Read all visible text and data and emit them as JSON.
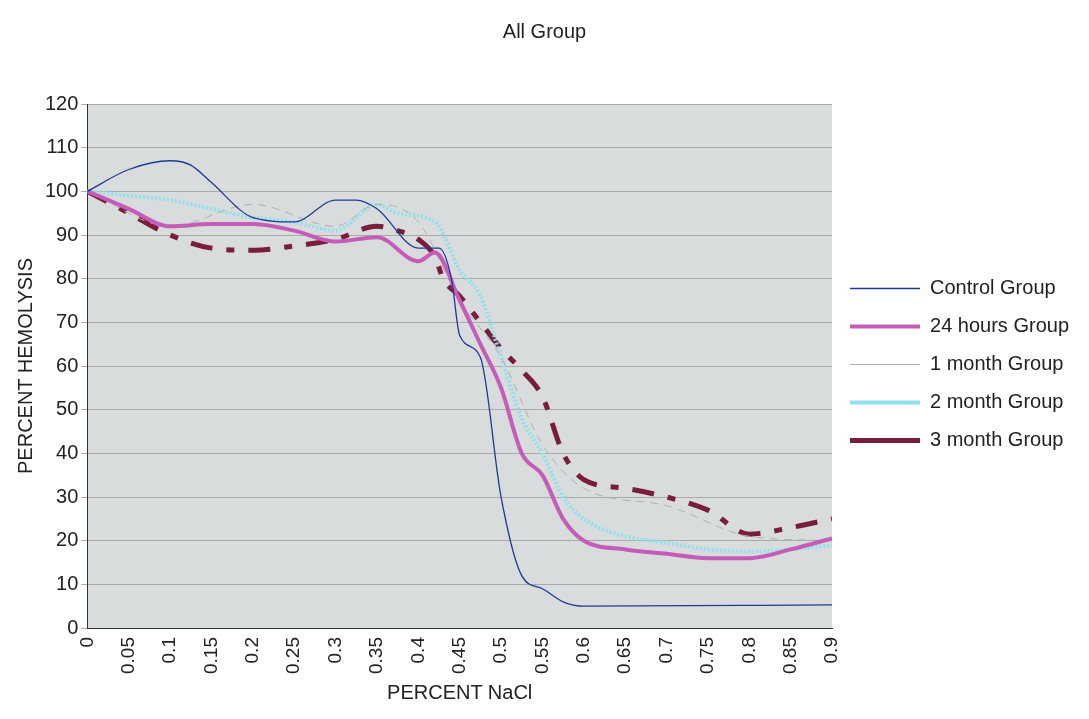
{
  "chart_data": {
    "type": "line",
    "title": "All Group",
    "xlabel": "PERCENT NaCl",
    "ylabel": "PERCENT HEMOLYSIS",
    "xlim": [
      0,
      0.9
    ],
    "xticks": [
      0,
      0.05,
      0.1,
      0.15,
      0.2,
      0.25,
      0.3,
      0.35,
      0.4,
      0.45,
      0.5,
      0.55,
      0.6,
      0.65,
      0.7,
      0.75,
      0.8,
      0.85,
      0.9
    ],
    "ylim": [
      0,
      120
    ],
    "yticks": [
      0,
      10,
      20,
      30,
      40,
      50,
      60,
      70,
      80,
      90,
      100,
      110,
      120
    ],
    "grid": "y",
    "legend": "right",
    "marker": "none",
    "series": [
      {
        "name": "Control Group",
        "color": "#1f3a93",
        "line_style": "solid",
        "x": [
          0,
          0.05,
          0.1,
          0.125,
          0.15,
          0.2,
          0.25,
          0.3,
          0.325,
          0.35,
          0.4,
          0.425,
          0.44,
          0.45,
          0.475,
          0.5,
          0.525,
          0.55,
          0.575,
          0.6,
          0.9
        ],
        "values": [
          100,
          105,
          107,
          106,
          102,
          94,
          93,
          98,
          98,
          96,
          87,
          87,
          80,
          67,
          62,
          30,
          12,
          9,
          6,
          5,
          5.3
        ]
      },
      {
        "name": "24 hours Group",
        "color": "#c45cb8",
        "line_style": "solid",
        "x": [
          0,
          0.05,
          0.1,
          0.15,
          0.2,
          0.25,
          0.3,
          0.35,
          0.4,
          0.42,
          0.45,
          0.475,
          0.5,
          0.525,
          0.55,
          0.575,
          0.6,
          0.65,
          0.7,
          0.75,
          0.8,
          0.85,
          0.9
        ],
        "values": [
          100,
          96,
          92,
          92.5,
          92.5,
          91,
          88.5,
          89.5,
          84,
          86,
          75,
          65,
          55,
          40,
          35,
          25,
          20,
          18,
          17,
          16,
          16,
          18,
          20.5
        ]
      },
      {
        "name": "1 month Group",
        "color": "#b0b0b0",
        "line_style": "dashed",
        "x": [
          0,
          0.1,
          0.2,
          0.3,
          0.35,
          0.4,
          0.45,
          0.5,
          0.55,
          0.6,
          0.7,
          0.8,
          0.9
        ],
        "values": [
          100,
          92,
          97,
          92,
          97,
          93,
          75,
          62,
          42,
          32,
          28,
          21,
          20
        ]
      },
      {
        "name": "2 month Group",
        "color": "#8fe0ee",
        "line_style": "dotted",
        "x": [
          0,
          0.05,
          0.1,
          0.15,
          0.2,
          0.25,
          0.3,
          0.35,
          0.375,
          0.42,
          0.45,
          0.475,
          0.5,
          0.525,
          0.55,
          0.575,
          0.6,
          0.65,
          0.7,
          0.75,
          0.8,
          0.85,
          0.9
        ],
        "values": [
          100,
          99,
          98,
          96,
          94,
          93,
          91,
          97,
          95,
          93,
          82,
          76,
          62,
          48,
          40,
          30,
          25,
          21,
          19.5,
          18,
          17.5,
          18,
          19
        ]
      },
      {
        "name": "3 month Group",
        "color": "#7a1c3c",
        "line_style": "dashdot",
        "x": [
          0,
          0.05,
          0.1,
          0.15,
          0.2,
          0.25,
          0.3,
          0.35,
          0.375,
          0.4,
          0.42,
          0.43,
          0.45,
          0.475,
          0.5,
          0.525,
          0.55,
          0.575,
          0.6,
          0.65,
          0.7,
          0.75,
          0.8,
          0.85,
          0.9
        ],
        "values": [
          100,
          95,
          90,
          87,
          86.5,
          87.5,
          89,
          92,
          91,
          89,
          85,
          80,
          76,
          70,
          64,
          59,
          53,
          40,
          34,
          32,
          30,
          27,
          21.5,
          23,
          25
        ]
      }
    ]
  }
}
